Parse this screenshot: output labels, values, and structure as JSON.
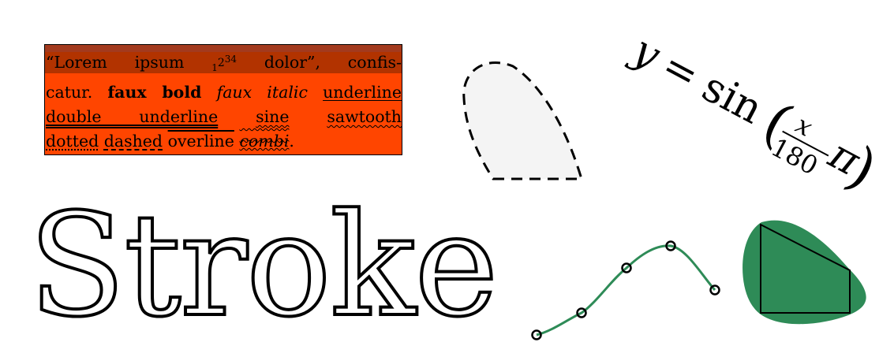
{
  "textbox": {
    "line1_a": "“Lorem",
    "line1_b": "ipsum",
    "line1_sub": "1",
    "line1_num2": "2",
    "line1_sup": "34",
    "line1_c": "dolor”,",
    "line1_d": "confis-",
    "line2_a": "catur.",
    "line2_bold": "faux bold",
    "line2_italic": "faux italic",
    "line2_underline": "underline",
    "line3_double": "double underline",
    "line3_sine": "sine",
    "line3_sawtooth": "sawtooth",
    "line4_dotted": "dotted",
    "line4_dashed": "dashed",
    "line4_overline": "overline",
    "line4_combi": "combi",
    "line4_end": ".",
    "background_color": "#ff4500",
    "band_color": "#b23300"
  },
  "stroke_text": "Stroke",
  "formula": {
    "lhs": "y",
    "equals": "=",
    "func": "sin",
    "numerator": "x",
    "denominator": "180",
    "pi": "π"
  },
  "colors": {
    "curve": "#2e8b57",
    "blob_fill": "#2e8b57",
    "dashed_fill": "#f4f4f4"
  }
}
